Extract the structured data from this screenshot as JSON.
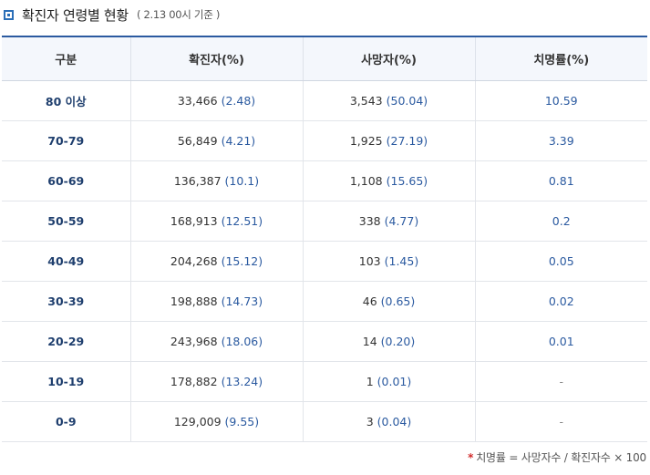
{
  "header": {
    "title": "확진자 연령별 현황",
    "subtitle": "( 2.13 00시 기준 )"
  },
  "table": {
    "columns": [
      "구분",
      "확진자(%)",
      "사망자(%)",
      "치명률(%)"
    ],
    "rows": [
      {
        "group": "80 이상",
        "cases": "33,466",
        "cases_pct": "(2.48)",
        "deaths": "3,543",
        "deaths_pct": "(50.04)",
        "rate": "10.59"
      },
      {
        "group": "70-79",
        "cases": "56,849",
        "cases_pct": "(4.21)",
        "deaths": "1,925",
        "deaths_pct": "(27.19)",
        "rate": "3.39"
      },
      {
        "group": "60-69",
        "cases": "136,387",
        "cases_pct": "(10.1)",
        "deaths": "1,108",
        "deaths_pct": "(15.65)",
        "rate": "0.81"
      },
      {
        "group": "50-59",
        "cases": "168,913",
        "cases_pct": "(12.51)",
        "deaths": "338",
        "deaths_pct": "(4.77)",
        "rate": "0.2"
      },
      {
        "group": "40-49",
        "cases": "204,268",
        "cases_pct": "(15.12)",
        "deaths": "103",
        "deaths_pct": "(1.45)",
        "rate": "0.05"
      },
      {
        "group": "30-39",
        "cases": "198,888",
        "cases_pct": "(14.73)",
        "deaths": "46",
        "deaths_pct": "(0.65)",
        "rate": "0.02"
      },
      {
        "group": "20-29",
        "cases": "243,968",
        "cases_pct": "(18.06)",
        "deaths": "14",
        "deaths_pct": "(0.20)",
        "rate": "0.01"
      },
      {
        "group": "10-19",
        "cases": "178,882",
        "cases_pct": "(13.24)",
        "deaths": "1",
        "deaths_pct": "(0.01)",
        "rate": "-"
      },
      {
        "group": "0-9",
        "cases": "129,009",
        "cases_pct": "(9.55)",
        "deaths": "3",
        "deaths_pct": "(0.04)",
        "rate": "-"
      }
    ]
  },
  "footnote": {
    "marker": "*",
    "text": "치명률 = 사망자수 / 확진자수 × 100"
  },
  "colors": {
    "accent": "#2b5aa0",
    "header_bg": "#f4f7fc",
    "marker": "#d12b2b"
  }
}
